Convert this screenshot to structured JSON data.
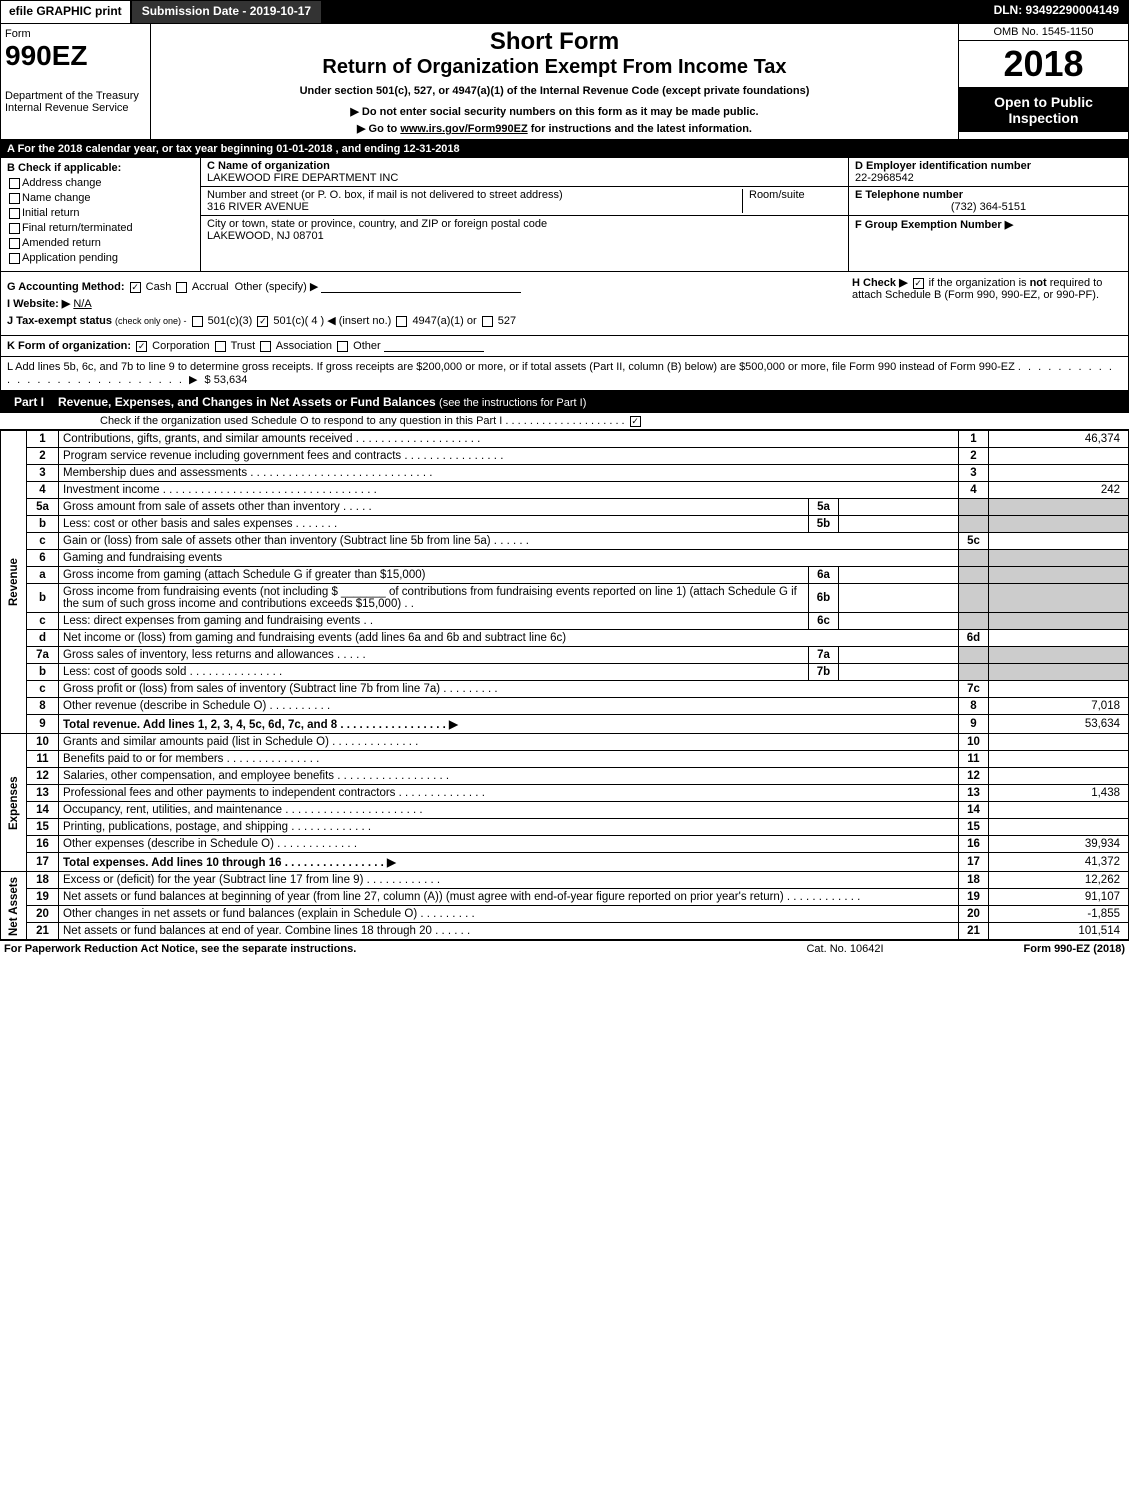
{
  "topbar": {
    "efile": "efile GRAPHIC print",
    "submission": "Submission Date - 2019-10-17",
    "dln": "DLN: 93492290004149"
  },
  "header": {
    "form_label": "Form",
    "form_number": "990EZ",
    "short_form": "Short Form",
    "return_title": "Return of Organization Exempt From Income Tax",
    "under_section": "Under section 501(c), 527, or 4947(a)(1) of the Internal Revenue Code (except private foundations)",
    "warning": "▶ Do not enter social security numbers on this form as it may be made public.",
    "goto_prefix": "▶ Go to ",
    "goto_link": "www.irs.gov/Form990EZ",
    "goto_suffix": " for instructions and the latest information.",
    "dept1": "Department of the Treasury",
    "irs": "Internal Revenue Service",
    "omb": "OMB No. 1545-1150",
    "year": "2018",
    "open_public": "Open to Public Inspection"
  },
  "period": {
    "label_a": "A For the 2018 calendar year, or tax year beginning ",
    "begin": "01-01-2018",
    "mid": " , and ending ",
    "end": "12-31-2018"
  },
  "section_b": {
    "label": "B Check if applicable:",
    "items": [
      "Address change",
      "Name change",
      "Initial return",
      "Final return/terminated",
      "Amended return",
      "Application pending"
    ]
  },
  "section_c": {
    "name_label": "C Name of organization",
    "name": "LAKEWOOD FIRE DEPARTMENT INC",
    "addr_label": "Number and street (or P. O. box, if mail is not delivered to street address)",
    "addr": "316 RIVER AVENUE",
    "room_label": "Room/suite",
    "city_label": "City or town, state or province, country, and ZIP or foreign postal code",
    "city": "LAKEWOOD, NJ  08701"
  },
  "section_d": {
    "label": "D Employer identification number",
    "value": "22-2968542"
  },
  "section_e": {
    "label": "E Telephone number",
    "value": "(732) 364-5151"
  },
  "section_f": {
    "label": "F Group Exemption Number  ▶"
  },
  "section_g": {
    "label": "G Accounting Method:",
    "cash": "Cash",
    "accrual": "Accrual",
    "other": "Other (specify) ▶"
  },
  "section_h": {
    "label": "H  Check ▶",
    "text1": "if the organization is ",
    "not": "not",
    "text2": " required to attach Schedule B (Form 990, 990-EZ, or 990-PF)."
  },
  "section_i": {
    "label": "I Website: ▶",
    "value": "N/A"
  },
  "section_j": {
    "label": "J Tax-exempt status",
    "note": "(check only one) -",
    "opt1": "501(c)(3)",
    "opt2": "501(c)( 4 ) ◀ (insert no.)",
    "opt3": "4947(a)(1) or",
    "opt4": "527"
  },
  "section_k": {
    "label": "K Form of organization:",
    "corp": "Corporation",
    "trust": "Trust",
    "assoc": "Association",
    "other": "Other"
  },
  "section_l": {
    "text": "L Add lines 5b, 6c, and 7b to line 9 to determine gross receipts. If gross receipts are $200,000 or more, or if total assets (Part II, column (B) below) are $500,000 or more, file Form 990 instead of Form 990-EZ",
    "dots": " . . . . . . . . . . . . . . . . . . . . . . . . . . . . ▶ ",
    "amount": "$ 53,634"
  },
  "part1": {
    "label": "Part I",
    "title": "Revenue, Expenses, and Changes in Net Assets or Fund Balances",
    "note": "(see the instructions for Part I)",
    "sub": "Check if the organization used Schedule O to respond to any question in this Part I",
    "sub_dots": " . . . . . . . . . . . . . . . . . . . . ",
    "checked": "☑"
  },
  "side_labels": {
    "revenue": "Revenue",
    "expenses": "Expenses",
    "net": "Net Assets"
  },
  "lines": [
    {
      "n": "1",
      "desc": "Contributions, gifts, grants, and similar amounts received . . . . . . . . . . . . . . . . . . . .",
      "ln": "1",
      "val": "46,374"
    },
    {
      "n": "2",
      "desc": "Program service revenue including government fees and contracts . . . . . . . . . . . . . . . .",
      "ln": "2",
      "val": ""
    },
    {
      "n": "3",
      "desc": "Membership dues and assessments . . . . . . . . . . . . . . . . . . . . . . . . . . . . .",
      "ln": "3",
      "val": ""
    },
    {
      "n": "4",
      "desc": "Investment income . . . . . . . . . . . . . . . . . . . . . . . . . . . . . . . . . .",
      "ln": "4",
      "val": "242"
    },
    {
      "n": "5a",
      "desc": "Gross amount from sale of assets other than inventory . . . . .",
      "mini": "5a",
      "mval": ""
    },
    {
      "n": "b",
      "desc": "Less: cost or other basis and sales expenses . . . . . . .",
      "mini": "5b",
      "mval": ""
    },
    {
      "n": "c",
      "desc": "Gain or (loss) from sale of assets other than inventory (Subtract line 5b from line 5a) . . . . . .",
      "ln": "5c",
      "val": ""
    },
    {
      "n": "6",
      "desc": "Gaming and fundraising events"
    },
    {
      "n": "a",
      "desc": "Gross income from gaming (attach Schedule G if greater than $15,000)",
      "mini": "6a",
      "mval": ""
    },
    {
      "n": "b",
      "desc": "Gross income from fundraising events (not including $ _______ of contributions from fundraising events reported on line 1) (attach Schedule G if the sum of such gross income and contributions exceeds $15,000)   . .",
      "mini": "6b",
      "mval": ""
    },
    {
      "n": "c",
      "desc": "Less: direct expenses from gaming and fundraising events   . .",
      "mini": "6c",
      "mval": ""
    },
    {
      "n": "d",
      "desc": "Net income or (loss) from gaming and fundraising events (add lines 6a and 6b and subtract line 6c)",
      "ln": "6d",
      "val": ""
    },
    {
      "n": "7a",
      "desc": "Gross sales of inventory, less returns and allowances . . . . .",
      "mini": "7a",
      "mval": ""
    },
    {
      "n": "b",
      "desc": "Less: cost of goods sold       . . . . . . . . . . . . . . .",
      "mini": "7b",
      "mval": ""
    },
    {
      "n": "c",
      "desc": "Gross profit or (loss) from sales of inventory (Subtract line 7b from line 7a) . . . . . . . . .",
      "ln": "7c",
      "val": ""
    },
    {
      "n": "8",
      "desc": "Other revenue (describe in Schedule O)             . . . . . . . . . .",
      "ln": "8",
      "val": "7,018"
    },
    {
      "n": "9",
      "desc": "Total revenue. Add lines 1, 2, 3, 4, 5c, 6d, 7c, and 8 . . . . . . . . . . . . . . . . .   ▶",
      "ln": "9",
      "val": "53,634",
      "bold": true
    },
    {
      "n": "10",
      "desc": "Grants and similar amounts paid (list in Schedule O)      . . . . . . . . . . . . . .",
      "ln": "10",
      "val": ""
    },
    {
      "n": "11",
      "desc": "Benefits paid to or for members           . . . . . . . . . . . . . . .",
      "ln": "11",
      "val": ""
    },
    {
      "n": "12",
      "desc": "Salaries, other compensation, and employee benefits . . . . . . . . . . . . . . . . . .",
      "ln": "12",
      "val": ""
    },
    {
      "n": "13",
      "desc": "Professional fees and other payments to independent contractors . . . . . . . . . . . . . .",
      "ln": "13",
      "val": "1,438"
    },
    {
      "n": "14",
      "desc": "Occupancy, rent, utilities, and maintenance . . . . . . . . . . . . . . . . . . . . . .",
      "ln": "14",
      "val": ""
    },
    {
      "n": "15",
      "desc": "Printing, publications, postage, and shipping         . . . . . . . . . . . . .",
      "ln": "15",
      "val": ""
    },
    {
      "n": "16",
      "desc": "Other expenses (describe in Schedule O)         . . . . . . . . . . . . .",
      "ln": "16",
      "val": "39,934"
    },
    {
      "n": "17",
      "desc": "Total expenses. Add lines 10 through 16      . . . . . . . . . . . . . . . .   ▶",
      "ln": "17",
      "val": "41,372",
      "bold": true
    },
    {
      "n": "18",
      "desc": "Excess or (deficit) for the year (Subtract line 17 from line 9)     . . . . . . . . . . . .",
      "ln": "18",
      "val": "12,262"
    },
    {
      "n": "19",
      "desc": "Net assets or fund balances at beginning of year (from line 27, column (A)) (must agree with end-of-year figure reported on prior year's return)        . . . . . . . . . . . .",
      "ln": "19",
      "val": "91,107"
    },
    {
      "n": "20",
      "desc": "Other changes in net assets or fund balances (explain in Schedule O)    . . . . . . . . .",
      "ln": "20",
      "val": "-1,855"
    },
    {
      "n": "21",
      "desc": "Net assets or fund balances at end of year. Combine lines 18 through 20     . . . . . .",
      "ln": "21",
      "val": "101,514"
    }
  ],
  "footer": {
    "left": "For Paperwork Reduction Act Notice, see the separate instructions.",
    "center": "Cat. No. 10642I",
    "right": "Form 990-EZ (2018)"
  },
  "colors": {
    "black": "#000000",
    "white": "#ffffff",
    "shade": "#cccccc"
  }
}
